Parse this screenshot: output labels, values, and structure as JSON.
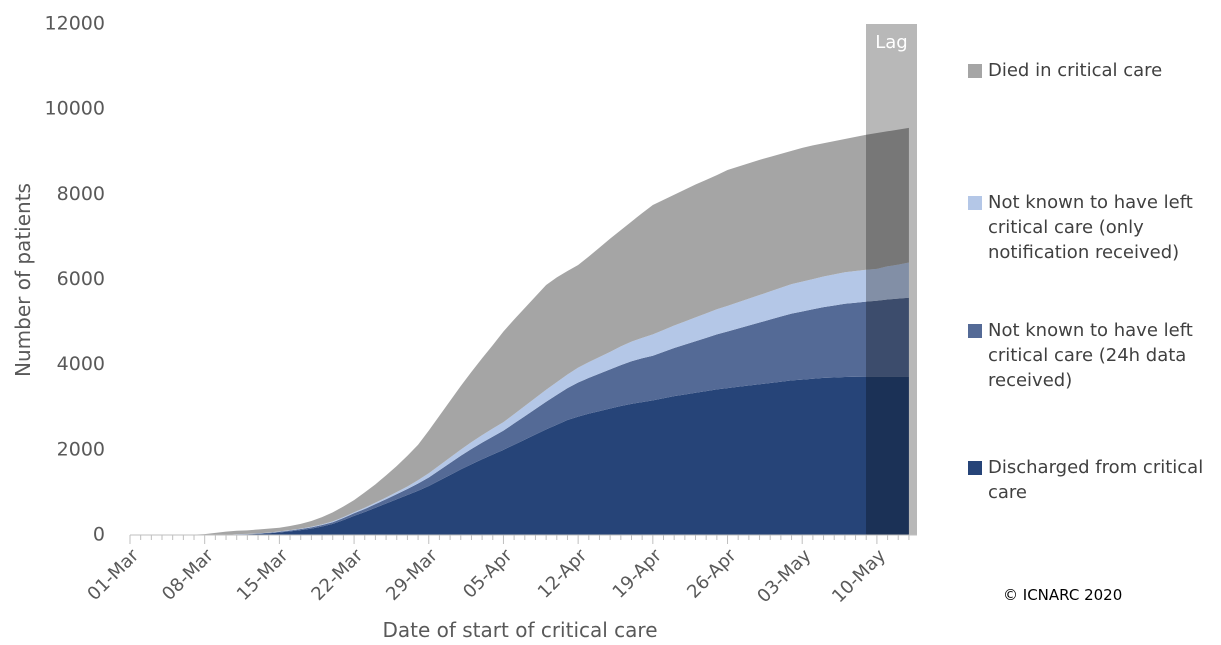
{
  "chart_data": {
    "type": "stacked_area",
    "ylabel": "Number of patients",
    "xlabel": "Date of start of critical care",
    "annotation": "Lag",
    "copyright": "© ICNARC 2020",
    "ylim": [
      0,
      12000
    ],
    "yticks": [
      0,
      2000,
      4000,
      6000,
      8000,
      10000,
      12000
    ],
    "grid": false,
    "categories": [
      "01-Mar",
      null,
      null,
      null,
      null,
      null,
      null,
      "08-Mar",
      null,
      null,
      null,
      null,
      null,
      null,
      "15-Mar",
      null,
      null,
      null,
      null,
      null,
      null,
      "22-Mar",
      null,
      null,
      null,
      null,
      null,
      null,
      "29-Mar",
      null,
      null,
      null,
      null,
      null,
      null,
      "05-Apr",
      null,
      null,
      null,
      null,
      null,
      null,
      "12-Apr",
      null,
      null,
      null,
      null,
      null,
      null,
      "19-Apr",
      null,
      null,
      null,
      null,
      null,
      null,
      "26-Apr",
      null,
      null,
      null,
      null,
      null,
      null,
      "03-May",
      null,
      null,
      null,
      null,
      null,
      null,
      "10-May",
      null,
      null,
      null
    ],
    "series": [
      {
        "name": "Discharged from critical care",
        "color": "#264478",
        "values": [
          0,
          0,
          0,
          0,
          0,
          0,
          0,
          0,
          0,
          0,
          10,
          15,
          25,
          40,
          60,
          85,
          115,
          150,
          200,
          260,
          350,
          450,
          540,
          640,
          740,
          840,
          940,
          1040,
          1150,
          1280,
          1410,
          1540,
          1660,
          1780,
          1890,
          2000,
          2120,
          2240,
          2360,
          2480,
          2590,
          2700,
          2780,
          2850,
          2910,
          2970,
          3030,
          3080,
          3120,
          3160,
          3210,
          3260,
          3300,
          3340,
          3380,
          3420,
          3450,
          3480,
          3510,
          3540,
          3570,
          3600,
          3630,
          3650,
          3670,
          3690,
          3700,
          3710,
          3715,
          3720,
          3720,
          3720,
          3720,
          3720
        ]
      },
      {
        "name": "Not known to have left critical care (24h data received)",
        "color": "#546a96",
        "values": [
          0,
          0,
          0,
          0,
          0,
          0,
          0,
          0,
          0,
          0,
          5,
          5,
          10,
          10,
          15,
          20,
          25,
          30,
          35,
          40,
          50,
          60,
          70,
          85,
          100,
          120,
          140,
          170,
          200,
          240,
          280,
          320,
          360,
          390,
          420,
          450,
          500,
          550,
          600,
          650,
          700,
          750,
          800,
          840,
          880,
          920,
          960,
          1000,
          1030,
          1050,
          1090,
          1130,
          1170,
          1210,
          1250,
          1290,
          1330,
          1370,
          1410,
          1450,
          1490,
          1530,
          1570,
          1600,
          1630,
          1660,
          1690,
          1720,
          1740,
          1760,
          1780,
          1810,
          1830,
          1850
        ]
      },
      {
        "name": "Not known to have left critical care (only notification received)",
        "color": "#b4c7e7",
        "values": [
          0,
          0,
          0,
          0,
          0,
          0,
          0,
          0,
          0,
          0,
          5,
          5,
          5,
          5,
          10,
          10,
          10,
          15,
          15,
          20,
          20,
          25,
          30,
          35,
          40,
          50,
          60,
          80,
          100,
          115,
          130,
          145,
          160,
          175,
          190,
          200,
          220,
          240,
          260,
          280,
          300,
          320,
          350,
          370,
          390,
          410,
          440,
          460,
          480,
          500,
          515,
          530,
          545,
          560,
          575,
          590,
          600,
          615,
          630,
          645,
          660,
          675,
          690,
          700,
          710,
          720,
          730,
          740,
          745,
          750,
          750,
          780,
          800,
          830
        ]
      },
      {
        "name": "Died in critical care",
        "color": "#a5a5a5",
        "values": [
          0,
          0,
          0,
          0,
          0,
          0,
          10,
          20,
          50,
          80,
          80,
          85,
          90,
          95,
          85,
          95,
          110,
          135,
          170,
          210,
          250,
          285,
          360,
          430,
          520,
          610,
          720,
          830,
          1000,
          1165,
          1330,
          1495,
          1650,
          1805,
          1960,
          2130,
          2220,
          2300,
          2380,
          2460,
          2460,
          2430,
          2410,
          2480,
          2570,
          2660,
          2730,
          2820,
          2930,
          3040,
          3055,
          3070,
          3095,
          3120,
          3135,
          3150,
          3190,
          3185,
          3180,
          3175,
          3160,
          3145,
          3130,
          3140,
          3140,
          3130,
          3130,
          3130,
          3150,
          3170,
          3190,
          3170,
          3170,
          3160
        ]
      }
    ]
  }
}
